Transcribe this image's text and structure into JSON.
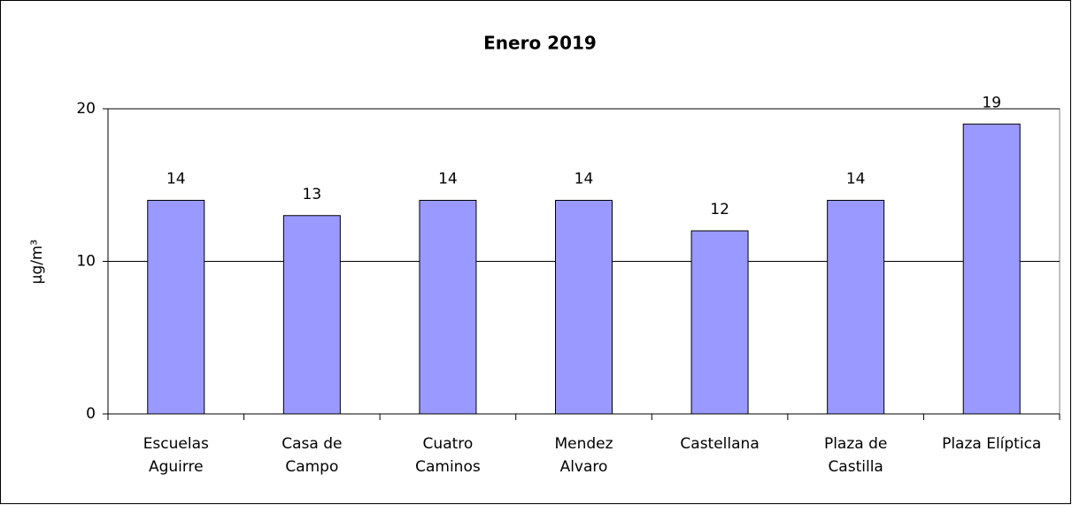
{
  "chart_data": {
    "type": "bar",
    "title": "Enero 2019",
    "y_label": "µg/m³",
    "categories": [
      "Escuelas\nAguirre",
      "Casa de\nCampo",
      "Cuatro\nCaminos",
      "Mendez\nAlvaro",
      "Castellana",
      "Plaza de\nCastilla",
      "Plaza Elíptica"
    ],
    "values": [
      14,
      13,
      14,
      14,
      12,
      14,
      19
    ],
    "color": "#9999ff",
    "ylim": [
      0,
      20
    ],
    "yticks": [
      0,
      10,
      20
    ],
    "grid": true
  }
}
